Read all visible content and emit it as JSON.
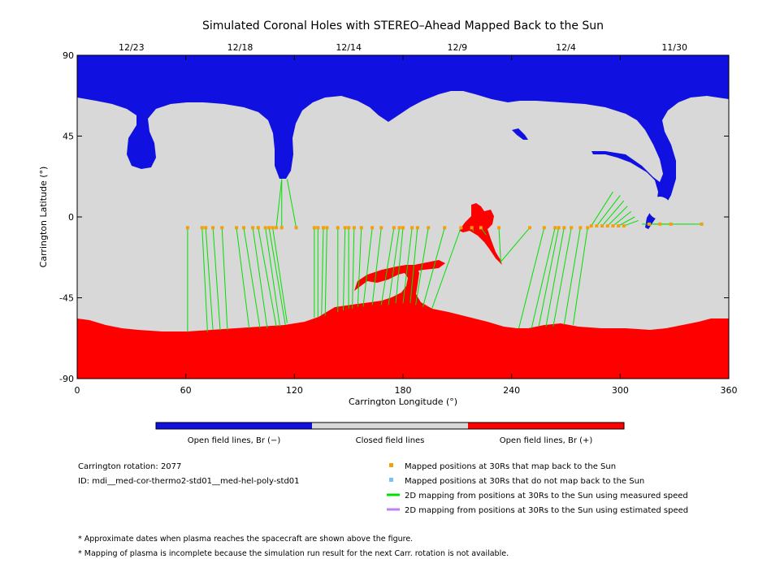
{
  "chart_data": {
    "type": "scatter",
    "title": "Simulated Coronal Holes with STEREO–Ahead Mapped Back to the Sun",
    "xlabel": "Carrington Longitude (°)",
    "ylabel": "Carrington Latitude (°)",
    "xlim": [
      0,
      360
    ],
    "ylim": [
      -90,
      90
    ],
    "x_ticks": [
      0,
      60,
      120,
      180,
      240,
      300,
      360
    ],
    "y_ticks": [
      90,
      45,
      0,
      -45,
      -90
    ],
    "top_date_labels": [
      {
        "date": "12/23",
        "lon": 30
      },
      {
        "date": "12/18",
        "lon": 90
      },
      {
        "date": "12/14",
        "lon": 150
      },
      {
        "date": "12/9",
        "lon": 210
      },
      {
        "date": "12/4",
        "lon": 270
      },
      {
        "date": "11/30",
        "lon": 330
      }
    ],
    "colorbar": [
      {
        "label": "Open field lines, Br (−)",
        "color": "#1010e0"
      },
      {
        "label": "Closed field lines",
        "color": "#d8d8d8"
      },
      {
        "label": "Open field lines, Br (+)",
        "color": "#ff0000"
      }
    ],
    "legend": [
      {
        "label": "Mapped positions at 30Rs that map back to the Sun",
        "color": "#f0a010",
        "marker": "square"
      },
      {
        "label": "Mapped positions at 30Rs that do not map back to the Sun",
        "color": "#80c0f0",
        "marker": "square"
      },
      {
        "label": "2D mapping from positions at 30Rs to the Sun using measured speed",
        "color": "#00e000",
        "marker": "line"
      },
      {
        "label": "2D mapping from positions at 30Rs to the Sun using estimated speed",
        "color": "#c080f0",
        "marker": "line"
      }
    ],
    "info": {
      "rotation": "Carrington rotation: 2077",
      "id": "ID: mdi__med-cor-thermo2-std01__med-hel-poly-std01"
    },
    "footnotes": [
      "* Approximate dates when plasma reaches the spacecraft are shown above the figure.",
      "* Mapping of plasma is incomplete because the simulation run result for the next Carr. rotation is not available."
    ],
    "series": [
      {
        "name": "Mapped positions at 30Rs that map back to the Sun",
        "mappings": [
          {
            "lon": 61,
            "lat": -6,
            "foot_lon": 61,
            "foot_lat": -64
          },
          {
            "lon": 69,
            "lat": -6,
            "foot_lon": 72,
            "foot_lat": -64
          },
          {
            "lon": 71,
            "lat": -6,
            "foot_lon": 75,
            "foot_lat": -63
          },
          {
            "lon": 75,
            "lat": -6,
            "foot_lon": 79,
            "foot_lat": -63
          },
          {
            "lon": 80,
            "lat": -6,
            "foot_lon": 83,
            "foot_lat": -63
          },
          {
            "lon": 88,
            "lat": -6,
            "foot_lon": 95,
            "foot_lat": -62
          },
          {
            "lon": 92,
            "lat": -6,
            "foot_lon": 101,
            "foot_lat": -62
          },
          {
            "lon": 97,
            "lat": -6,
            "foot_lon": 105,
            "foot_lat": -62
          },
          {
            "lon": 100,
            "lat": -6,
            "foot_lon": 110,
            "foot_lat": -61
          },
          {
            "lon": 104,
            "lat": -6,
            "foot_lon": 112,
            "foot_lat": -61
          },
          {
            "lon": 106,
            "lat": -6,
            "foot_lon": 115,
            "foot_lat": -60
          },
          {
            "lon": 108,
            "lat": -6,
            "foot_lon": 116,
            "foot_lat": -59
          },
          {
            "lon": 110,
            "lat": -6,
            "foot_lon": 113,
            "foot_lat": 21
          },
          {
            "lon": 113,
            "lat": -6,
            "foot_lon": 113,
            "foot_lat": 21
          },
          {
            "lon": 121,
            "lat": -6,
            "foot_lon": 116,
            "foot_lat": 21
          },
          {
            "lon": 131,
            "lat": -6,
            "foot_lon": 131,
            "foot_lat": -56
          },
          {
            "lon": 133,
            "lat": -6,
            "foot_lon": 133,
            "foot_lat": -56
          },
          {
            "lon": 136,
            "lat": -6,
            "foot_lon": 135,
            "foot_lat": -55
          },
          {
            "lon": 138,
            "lat": -6,
            "foot_lon": 137,
            "foot_lat": -55
          },
          {
            "lon": 144,
            "lat": -6,
            "foot_lon": 144,
            "foot_lat": -53
          },
          {
            "lon": 148,
            "lat": -6,
            "foot_lon": 147,
            "foot_lat": -52
          },
          {
            "lon": 150,
            "lat": -6,
            "foot_lon": 150,
            "foot_lat": -51
          },
          {
            "lon": 153,
            "lat": -6,
            "foot_lon": 152,
            "foot_lat": -51
          },
          {
            "lon": 157,
            "lat": -6,
            "foot_lon": 155,
            "foot_lat": -50
          },
          {
            "lon": 163,
            "lat": -6,
            "foot_lon": 158,
            "foot_lat": -50
          },
          {
            "lon": 168,
            "lat": -6,
            "foot_lon": 163,
            "foot_lat": -49
          },
          {
            "lon": 175,
            "lat": -6,
            "foot_lon": 168,
            "foot_lat": -49
          },
          {
            "lon": 178,
            "lat": -6,
            "foot_lon": 172,
            "foot_lat": -49
          },
          {
            "lon": 180,
            "lat": -6,
            "foot_lon": 176,
            "foot_lat": -48
          },
          {
            "lon": 185,
            "lat": -6,
            "foot_lon": 180,
            "foot_lat": -48
          },
          {
            "lon": 188,
            "lat": -6,
            "foot_lon": 184,
            "foot_lat": -48
          },
          {
            "lon": 194,
            "lat": -6,
            "foot_lon": 187,
            "foot_lat": -49
          },
          {
            "lon": 203,
            "lat": -6,
            "foot_lon": 191,
            "foot_lat": -50
          },
          {
            "lon": 212,
            "lat": -6,
            "foot_lon": 196,
            "foot_lat": -51
          },
          {
            "lon": 218,
            "lat": -6,
            "foot_lon": 219,
            "foot_lat": -8
          },
          {
            "lon": 223,
            "lat": -6,
            "foot_lon": 226,
            "foot_lat": -10
          },
          {
            "lon": 233,
            "lat": -6,
            "foot_lon": 234,
            "foot_lat": -25
          },
          {
            "lon": 250,
            "lat": -6,
            "foot_lon": 234,
            "foot_lat": -25
          },
          {
            "lon": 258,
            "lat": -6,
            "foot_lon": 244,
            "foot_lat": -62
          },
          {
            "lon": 264,
            "lat": -6,
            "foot_lon": 251,
            "foot_lat": -62
          },
          {
            "lon": 266,
            "lat": -6,
            "foot_lon": 255,
            "foot_lat": -61
          },
          {
            "lon": 269,
            "lat": -6,
            "foot_lon": 259,
            "foot_lat": -61
          },
          {
            "lon": 273,
            "lat": -6,
            "foot_lon": 263,
            "foot_lat": -61
          },
          {
            "lon": 278,
            "lat": -6,
            "foot_lon": 269,
            "foot_lat": -60
          },
          {
            "lon": 282,
            "lat": -6,
            "foot_lon": 274,
            "foot_lat": -60
          },
          {
            "lon": 284,
            "lat": -5,
            "foot_lon": 296,
            "foot_lat": 14
          },
          {
            "lon": 287,
            "lat": -5,
            "foot_lon": 300,
            "foot_lat": 12
          },
          {
            "lon": 290,
            "lat": -5,
            "foot_lon": 302,
            "foot_lat": 9
          },
          {
            "lon": 293,
            "lat": -5,
            "foot_lon": 304,
            "foot_lat": 6
          },
          {
            "lon": 296,
            "lat": -5,
            "foot_lon": 306,
            "foot_lat": 3
          },
          {
            "lon": 299,
            "lat": -5,
            "foot_lon": 308,
            "foot_lat": 0
          },
          {
            "lon": 302,
            "lat": -5,
            "foot_lon": 310,
            "foot_lat": -2
          },
          {
            "lon": 316,
            "lat": -4,
            "foot_lon": 312,
            "foot_lat": -4
          },
          {
            "lon": 322,
            "lat": -4,
            "foot_lon": 316,
            "foot_lat": -4
          },
          {
            "lon": 328,
            "lat": -4,
            "foot_lon": 318,
            "foot_lat": -4
          },
          {
            "lon": 345,
            "lat": -4,
            "foot_lon": 322,
            "foot_lat": -4
          }
        ]
      }
    ]
  }
}
